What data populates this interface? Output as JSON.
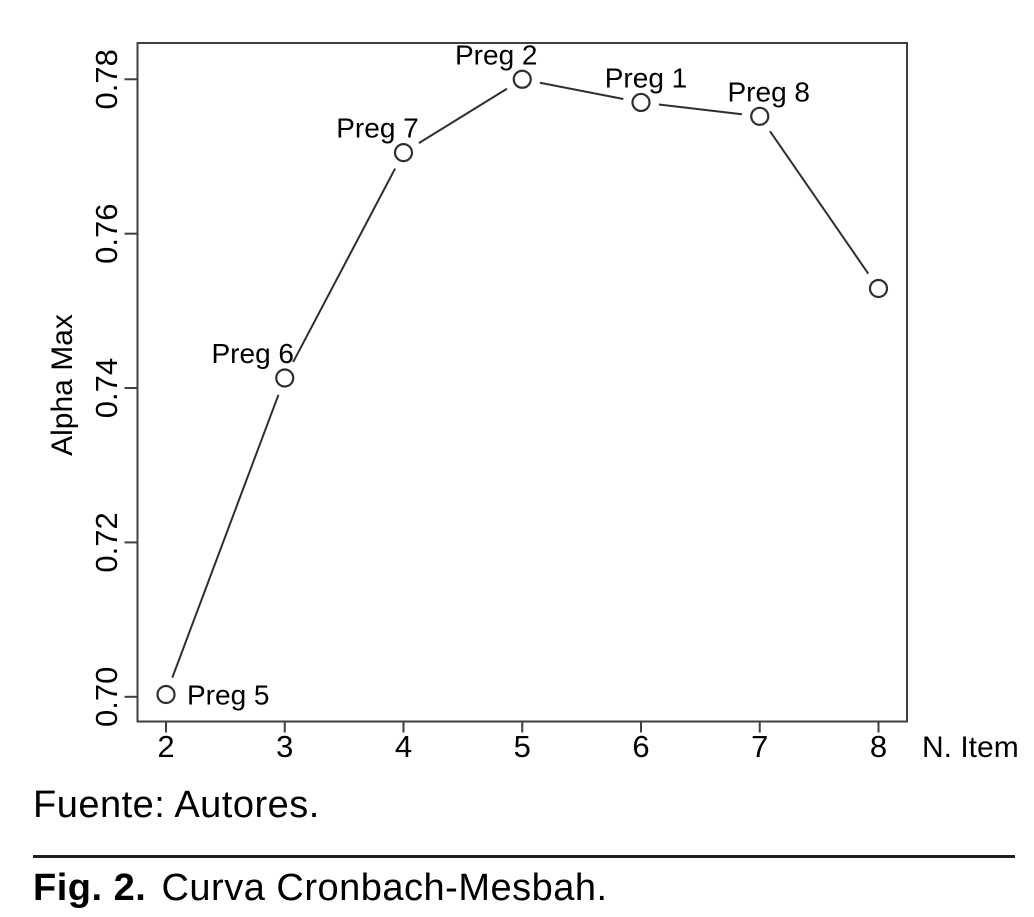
{
  "figure": {
    "source_note": "Fuente: Autores.",
    "caption_label": "Fig. 2.",
    "caption_text": "Curva Cronbach-Mesbah."
  },
  "chart_data": {
    "type": "line",
    "title": "",
    "xlabel": "N. Item",
    "ylabel": "Alpha Max",
    "x": [
      2,
      3,
      4,
      5,
      6,
      7,
      8
    ],
    "values": [
      0.7003,
      0.7413,
      0.7705,
      0.78,
      0.777,
      0.7752,
      0.7529
    ],
    "point_labels": [
      "Preg 5",
      "Preg 6",
      "Preg 7",
      "Preg 2",
      "Preg 1",
      "Preg 8",
      ""
    ],
    "label_pos": [
      "right",
      "above",
      "above",
      "above",
      "above",
      "above",
      "none"
    ],
    "label_dx": [
      0,
      -32,
      -26,
      -26,
      5,
      9,
      0
    ],
    "x_ticks": [
      "2",
      "3",
      "4",
      "5",
      "6",
      "7",
      "8"
    ],
    "x_tick_values": [
      2,
      3,
      4,
      5,
      6,
      7,
      8
    ],
    "y_ticks": [
      "0.70",
      "0.72",
      "0.74",
      "0.76",
      "0.78"
    ],
    "y_tick_values": [
      0.7,
      0.72,
      0.74,
      0.76,
      0.78
    ],
    "xlim": [
      1.76,
      8.24
    ],
    "ylim": [
      0.6968,
      0.7847
    ],
    "grid": false,
    "legend": "none",
    "marker": "open-circle",
    "line_style": "segments-with-gaps-at-points",
    "colors": {
      "line": "#2f2f2f",
      "box": "#3f3f3f",
      "text": "#000000",
      "marker_fill": "#ffffff"
    }
  }
}
